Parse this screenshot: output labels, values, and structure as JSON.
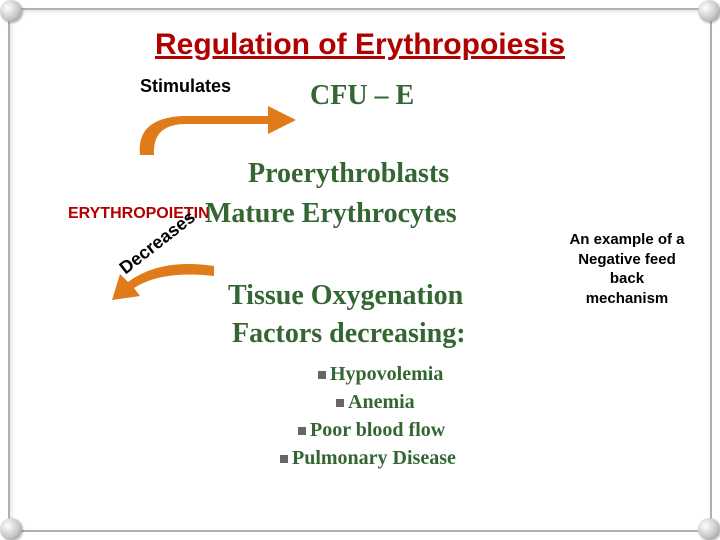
{
  "title": {
    "text": "Regulation of Erythropoiesis",
    "color": "#b00000",
    "fontsize": 30
  },
  "stimulates": {
    "text": "Stimulates",
    "color": "#000000"
  },
  "cfu": {
    "text": "CFU – E",
    "color": "#336633"
  },
  "proery": {
    "text": "Proerythroblasts",
    "color": "#336633"
  },
  "epo_label": {
    "text": "ERYTHROPOIETIN",
    "color": "#b00000"
  },
  "mature": {
    "text": "Mature Erythrocytes",
    "color": "#336633"
  },
  "decreases": {
    "text": "Decreases",
    "color": "#000000"
  },
  "tissue": {
    "text": "Tissue Oxygenation",
    "color": "#336633"
  },
  "factors": {
    "text": "Factors decreasing:",
    "color": "#336633"
  },
  "bullets": [
    {
      "text": "Hypovolemia",
      "indent": 38
    },
    {
      "text": "Anemia",
      "indent": 56
    },
    {
      "text": "Poor blood flow",
      "indent": 18
    },
    {
      "text": "Pulmonary Disease",
      "indent": 0
    }
  ],
  "bullet_color": "#336633",
  "bullet_square_color": "#666666",
  "sidenote": {
    "line1": "An example of a",
    "line2": "Negative feed back",
    "line3": "mechanism",
    "color": "#000000"
  },
  "arrow_color": "#e07b1a",
  "background": "#ffffff"
}
